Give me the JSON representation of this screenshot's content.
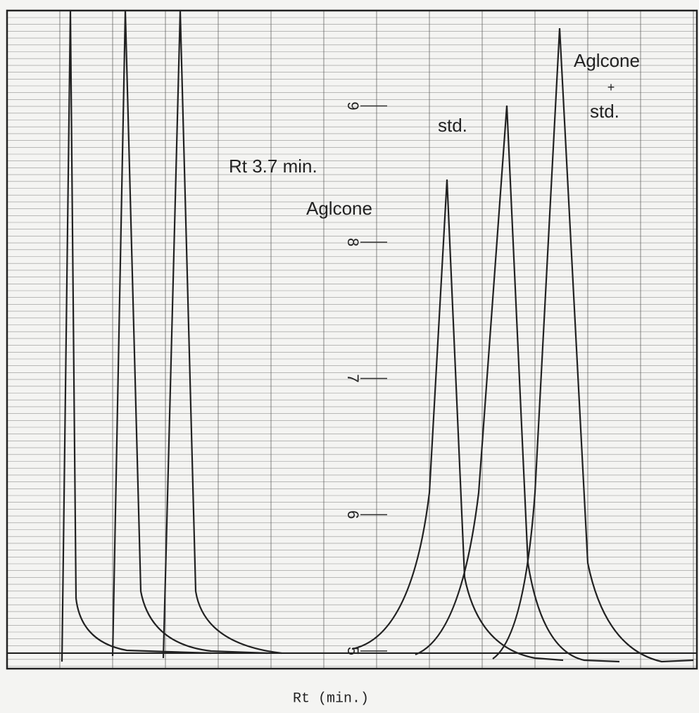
{
  "chart_data": {
    "type": "chromatogram",
    "xlabel": "Rt (min.)",
    "annotations": [
      "Rt 3.7 min.",
      "Aglcone",
      "std.",
      "Aglcone",
      "+",
      "std."
    ],
    "ylim": [
      4.87,
      9.7
    ],
    "yticks": [
      5,
      6,
      7,
      8,
      9
    ],
    "color": "#222222"
  }
}
